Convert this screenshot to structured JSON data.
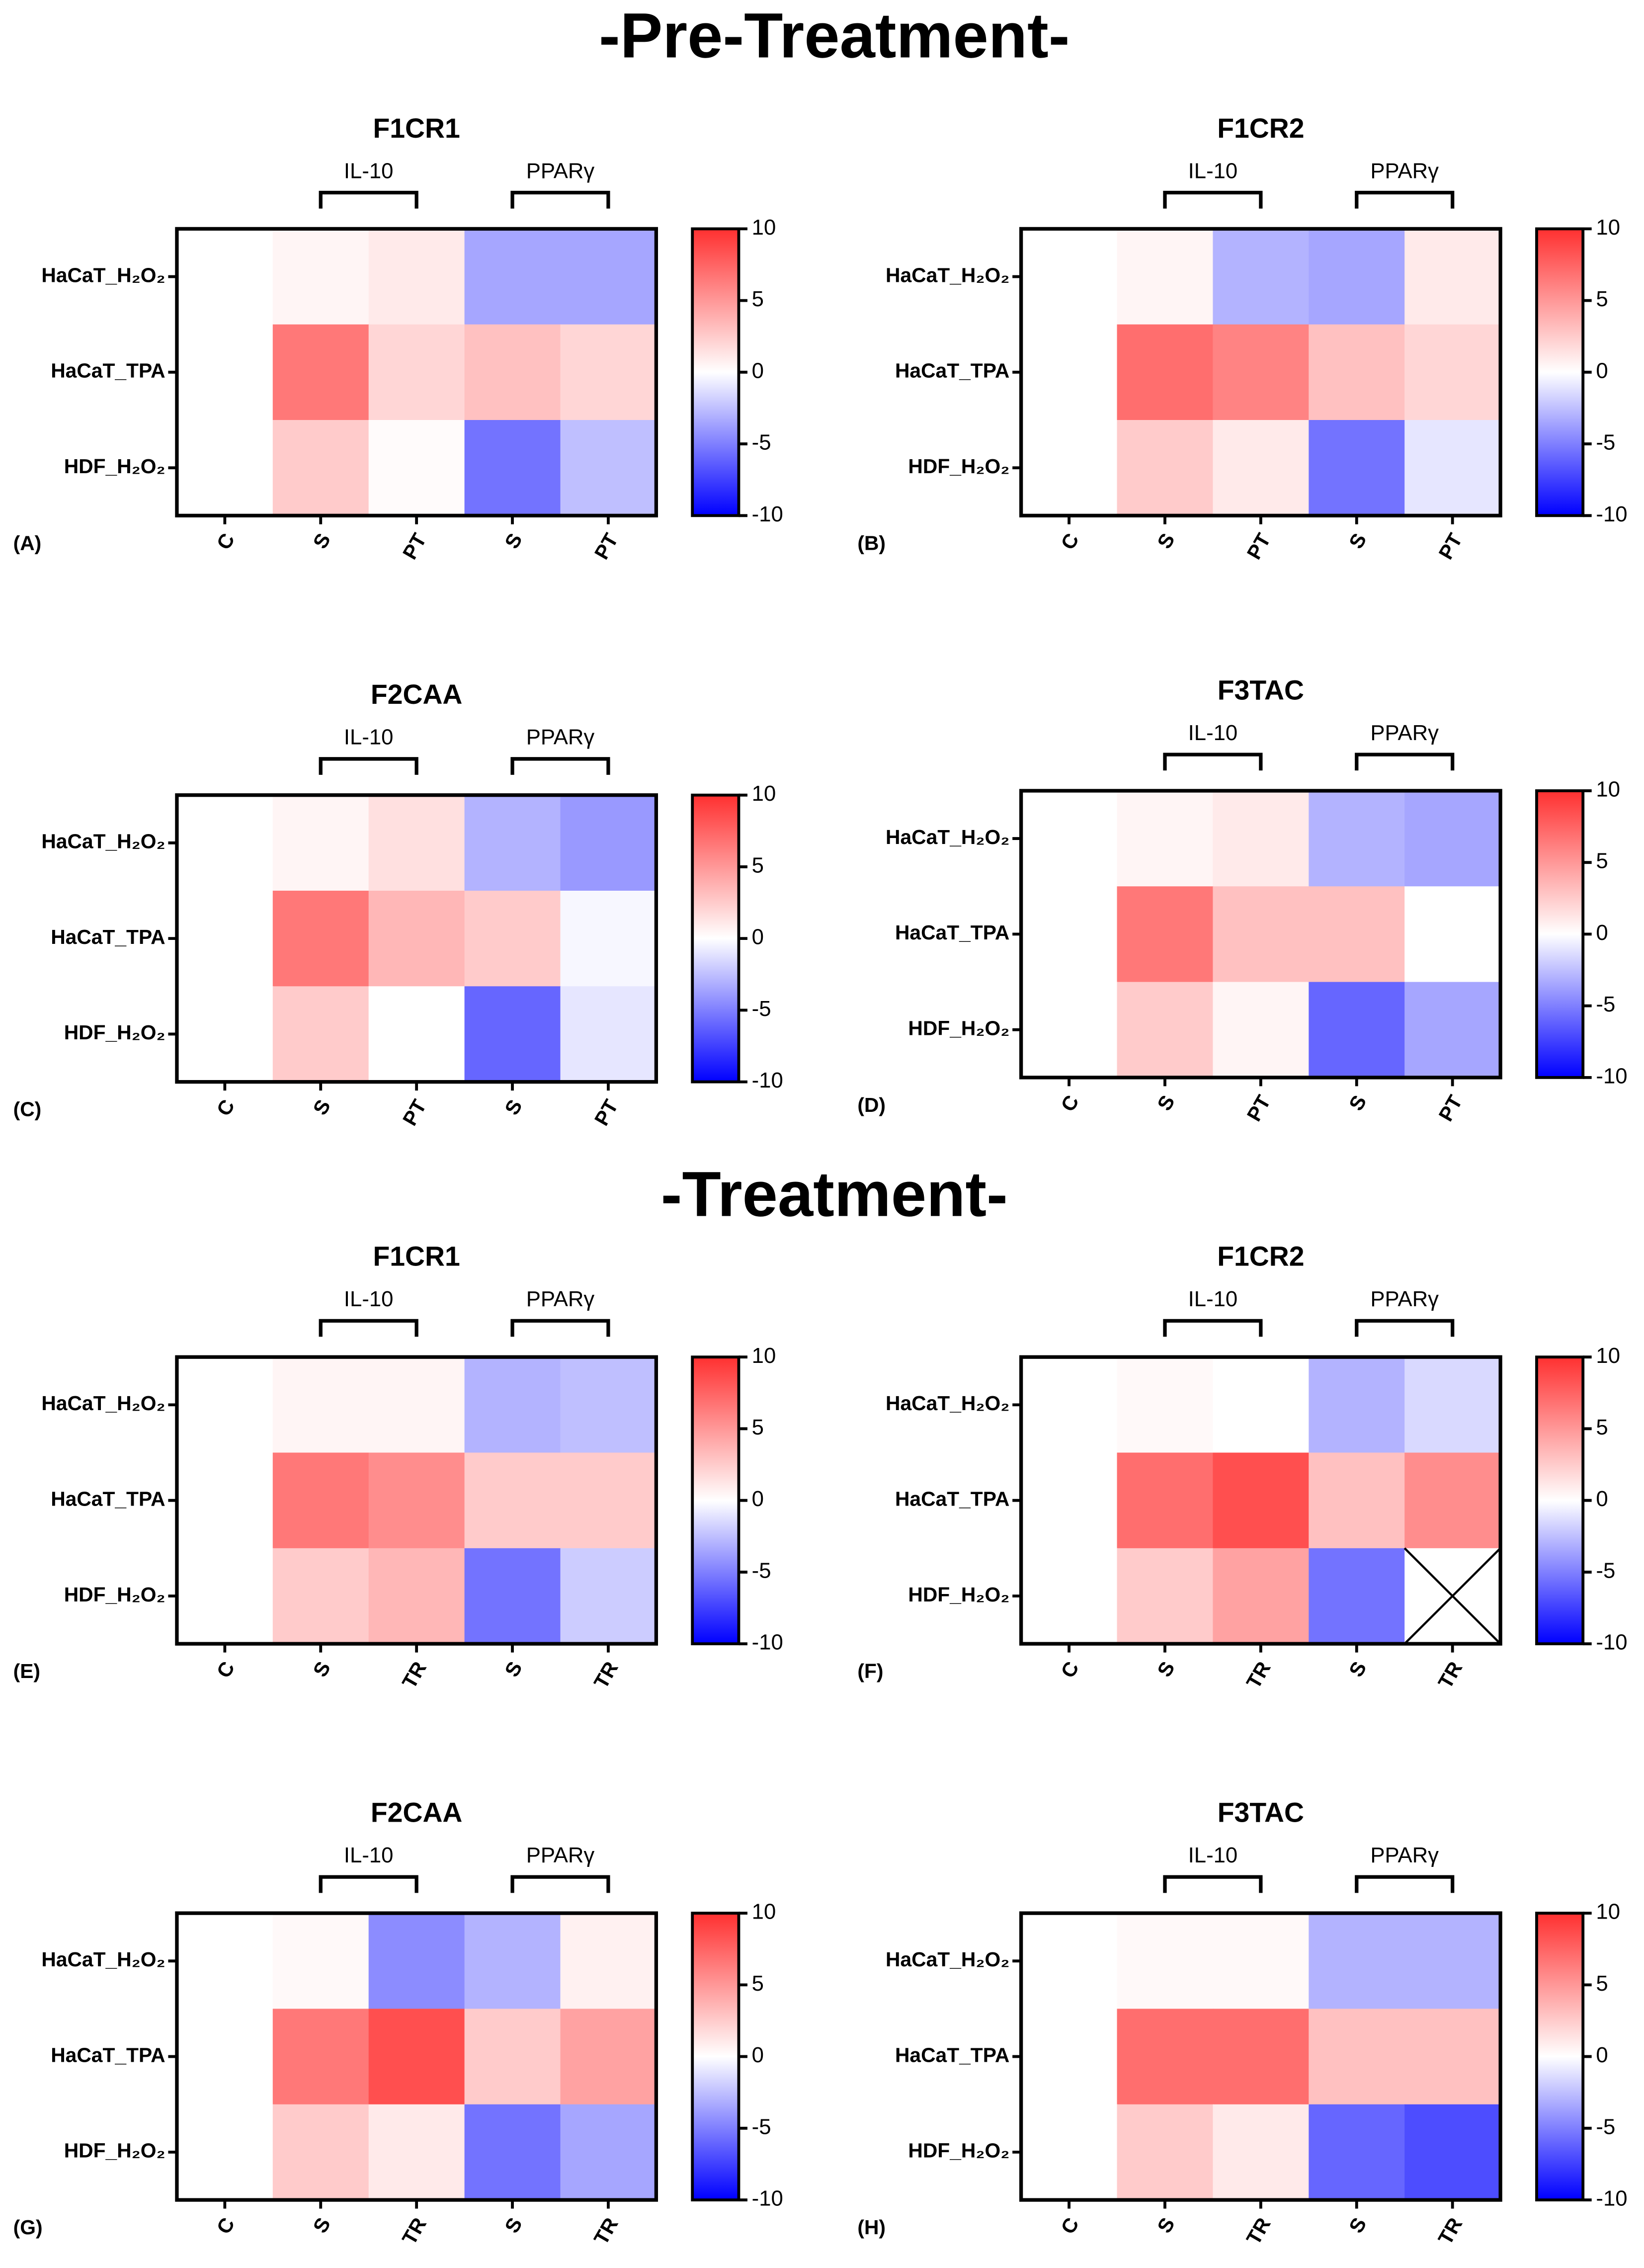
{
  "headings": [
    "-Pre-Treatment-",
    "-Treatment-"
  ],
  "chart_data": [
    {
      "type": "heatmap",
      "panel": "(A)",
      "title": "F1CR1",
      "groups": [
        "IL-10",
        "PPARγ"
      ],
      "x_categories": [
        "C",
        "S",
        "PT",
        "S",
        "PT"
      ],
      "y_categories": [
        "HaCaT_H₂O₂",
        "HaCaT_TPA",
        "HDF_H₂O₂"
      ],
      "values": [
        [
          0,
          0.5,
          1,
          -3.5,
          -3.5
        ],
        [
          0,
          6.5,
          2,
          3,
          2
        ],
        [
          0,
          2.5,
          0.2,
          -5.5,
          -2.5
        ]
      ],
      "clim": [
        -10,
        10
      ],
      "cticks": [
        10,
        5,
        0,
        -5,
        -10
      ],
      "colors": [
        "#0000ff",
        "#ffffff",
        "#ff3030"
      ]
    },
    {
      "type": "heatmap",
      "panel": "(B)",
      "title": "F1CR2",
      "groups": [
        "IL-10",
        "PPARγ"
      ],
      "x_categories": [
        "C",
        "S",
        "PT",
        "S",
        "PT"
      ],
      "y_categories": [
        "HaCaT_H₂O₂",
        "HaCaT_TPA",
        "HDF_H₂O₂"
      ],
      "values": [
        [
          0,
          0.5,
          -3,
          -3.5,
          1
        ],
        [
          0,
          7,
          6,
          3,
          2
        ],
        [
          0,
          2.5,
          1,
          -5.5,
          -1
        ]
      ],
      "clim": [
        -10,
        10
      ],
      "cticks": [
        10,
        5,
        0,
        -5,
        -10
      ],
      "colors": [
        "#0000ff",
        "#ffffff",
        "#ff3030"
      ]
    },
    {
      "type": "heatmap",
      "panel": "(C)",
      "title": "F2CAA",
      "groups": [
        "IL-10",
        "PPARγ"
      ],
      "x_categories": [
        "C",
        "S",
        "PT",
        "S",
        "PT"
      ],
      "y_categories": [
        "HaCaT_H₂O₂",
        "HaCaT_TPA",
        "HDF_H₂O₂"
      ],
      "values": [
        [
          0,
          0.5,
          1.5,
          -3,
          -4
        ],
        [
          0,
          6.5,
          3.5,
          2.5,
          -0.3
        ],
        [
          0,
          2.5,
          0,
          -6,
          -1
        ]
      ],
      "clim": [
        -10,
        10
      ],
      "cticks": [
        10,
        5,
        0,
        -5,
        -10
      ],
      "colors": [
        "#0000ff",
        "#ffffff",
        "#ff3030"
      ]
    },
    {
      "type": "heatmap",
      "panel": "(D)",
      "title": "F3TAC",
      "groups": [
        "IL-10",
        "PPARγ"
      ],
      "x_categories": [
        "C",
        "S",
        "PT",
        "S",
        "PT"
      ],
      "y_categories": [
        "HaCaT_H₂O₂",
        "HaCaT_TPA",
        "HDF_H₂O₂"
      ],
      "values": [
        [
          0,
          0.5,
          1,
          -3,
          -3.5
        ],
        [
          0,
          6.5,
          3,
          3,
          0
        ],
        [
          0,
          2.5,
          0.5,
          -6,
          -3.5
        ]
      ],
      "clim": [
        -10,
        10
      ],
      "cticks": [
        10,
        5,
        0,
        -5,
        -10
      ],
      "colors": [
        "#0000ff",
        "#ffffff",
        "#ff3030"
      ]
    },
    {
      "type": "heatmap",
      "panel": "(E)",
      "title": "F1CR1",
      "groups": [
        "IL-10",
        "PPARγ"
      ],
      "x_categories": [
        "C",
        "S",
        "TR",
        "S",
        "TR"
      ],
      "y_categories": [
        "HaCaT_H₂O₂",
        "HaCaT_TPA",
        "HDF_H₂O₂"
      ],
      "values": [
        [
          0,
          0.5,
          0.5,
          -3,
          -2.5
        ],
        [
          0,
          6.5,
          5.5,
          2.5,
          2.5
        ],
        [
          0,
          2.5,
          3.5,
          -5.5,
          -2
        ]
      ],
      "clim": [
        -10,
        10
      ],
      "cticks": [
        10,
        5,
        0,
        -5,
        -10
      ],
      "colors": [
        "#0000ff",
        "#ffffff",
        "#ff3030"
      ]
    },
    {
      "type": "heatmap",
      "panel": "(F)",
      "title": "F1CR2",
      "groups": [
        "IL-10",
        "PPARγ"
      ],
      "x_categories": [
        "C",
        "S",
        "TR",
        "S",
        "TR"
      ],
      "y_categories": [
        "HaCaT_H₂O₂",
        "HaCaT_TPA",
        "HDF_H₂O₂"
      ],
      "values": [
        [
          0,
          0.3,
          0,
          -3,
          -1.5
        ],
        [
          0,
          7,
          8.5,
          3,
          5.5
        ],
        [
          0,
          2.5,
          4.5,
          -5.5,
          null
        ]
      ],
      "clim": [
        -10,
        10
      ],
      "cticks": [
        10,
        5,
        0,
        -5,
        -10
      ],
      "colors": [
        "#0000ff",
        "#ffffff",
        "#ff3030"
      ]
    },
    {
      "type": "heatmap",
      "panel": "(G)",
      "title": "F2CAA",
      "groups": [
        "IL-10",
        "PPARγ"
      ],
      "x_categories": [
        "C",
        "S",
        "TR",
        "S",
        "TR"
      ],
      "y_categories": [
        "HaCaT_H₂O₂",
        "HaCaT_TPA",
        "HDF_H₂O₂"
      ],
      "values": [
        [
          0,
          0.3,
          -4.5,
          -3,
          0.7
        ],
        [
          0,
          6.5,
          8.5,
          2.5,
          4.5
        ],
        [
          0,
          2.5,
          1,
          -5.5,
          -3.5
        ]
      ],
      "clim": [
        -10,
        10
      ],
      "cticks": [
        10,
        5,
        0,
        -5,
        -10
      ],
      "colors": [
        "#0000ff",
        "#ffffff",
        "#ff3030"
      ]
    },
    {
      "type": "heatmap",
      "panel": "(H)",
      "title": "F3TAC",
      "groups": [
        "IL-10",
        "PPARγ"
      ],
      "x_categories": [
        "C",
        "S",
        "TR",
        "S",
        "TR"
      ],
      "y_categories": [
        "HaCaT_H₂O₂",
        "HaCaT_TPA",
        "HDF_H₂O₂"
      ],
      "values": [
        [
          0,
          0.3,
          0.3,
          -3,
          -3
        ],
        [
          0,
          7,
          7,
          3,
          3
        ],
        [
          0,
          2.5,
          1,
          -6,
          -7
        ]
      ],
      "clim": [
        -10,
        10
      ],
      "cticks": [
        10,
        5,
        0,
        -5,
        -10
      ],
      "colors": [
        "#0000ff",
        "#ffffff",
        "#ff3030"
      ]
    }
  ]
}
